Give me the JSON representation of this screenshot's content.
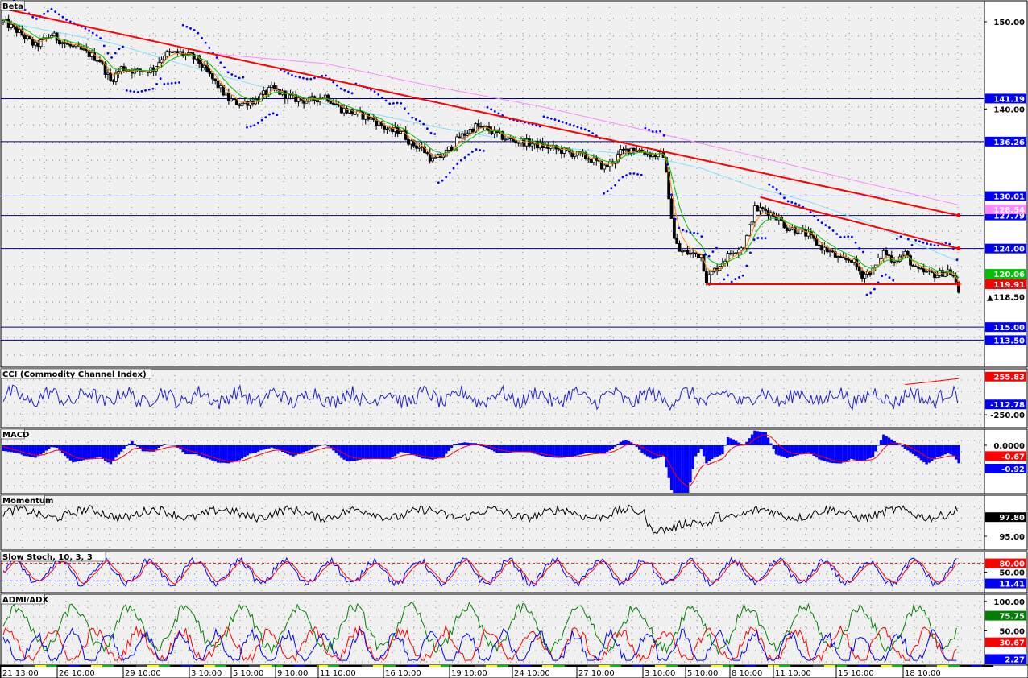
{
  "colors": {
    "background": "#f0f0f0",
    "frame": "#000000",
    "hline": "#00008b",
    "trend": "#ff0000",
    "sar": "#0000ff",
    "ma_fast": "#ff8c00",
    "ma_green": "#00c000",
    "ma_cyan": "#80e0ff",
    "ma_pink": "#ff88ff",
    "macd_hist": "#0000ff",
    "macd_signal": "#ff0000",
    "stoch_k": "#0000ff",
    "stoch_d": "#ff0000",
    "adx": "#008000",
    "di_plus": "#ff0000",
    "di_minus": "#0000ff"
  },
  "chart_data": [
    {
      "type": "candlestick",
      "title": "Beta",
      "ylim": [
        110.4,
        152.4
      ],
      "y_ticks": [
        "150.00",
        "140.00"
      ],
      "horizontal_levels": [
        {
          "value": 141.19,
          "label": "141.19",
          "bg": "#0000ff",
          "fg": "#ffffff"
        },
        {
          "value": 136.26,
          "label": "136.26",
          "bg": "#0000ff",
          "fg": "#ffffff"
        },
        {
          "value": 130.01,
          "label": "130.01",
          "bg": "#0000ff",
          "fg": "#ffffff"
        },
        {
          "value": 127.79,
          "label": "127.79",
          "bg": "#0000ff",
          "fg": "#ffffff"
        },
        {
          "value": 124.0,
          "label": "124.00",
          "bg": "#0000ff",
          "fg": "#ffffff"
        },
        {
          "value": 115.0,
          "label": "115.00",
          "bg": "#0000ff",
          "fg": "#ffffff"
        },
        {
          "value": 113.5,
          "label": "113.50",
          "bg": "#0000ff",
          "fg": "#ffffff"
        }
      ],
      "value_tags": [
        {
          "value": 128.5,
          "label": "128.54",
          "bg": "#ff88ff",
          "fg": "#ffffff"
        },
        {
          "value": 121.1,
          "label": "120.06",
          "bg": "#00c000",
          "fg": "#ffffff"
        },
        {
          "value": 119.91,
          "label": "119.91",
          "bg": "#ff0000",
          "fg": "#ffffff"
        },
        {
          "value": 118.5,
          "label": "118.50",
          "bg": "#ffffff",
          "fg": "#000000",
          "marker": "▲"
        }
      ],
      "x_labels": [
        "21 13:00",
        "26 10:00",
        "29 10:00",
        "3 10:00",
        "5 10:00",
        "9 10:00",
        "11 10:00",
        "16 10:00",
        "19 10:00",
        "24 10:00",
        "27 10:00",
        "3 10:00",
        "5 10:00",
        "8 10:00",
        "11 10:00",
        "15 10:00",
        "18 10:00"
      ],
      "close_path": [
        [
          0,
          150
        ],
        [
          3,
          148.8
        ],
        [
          6,
          147.2
        ],
        [
          9,
          148.5
        ],
        [
          12,
          147.3
        ],
        [
          15,
          146.6
        ],
        [
          18,
          145.6
        ],
        [
          20,
          143.2
        ],
        [
          22,
          144.7
        ],
        [
          25,
          144.3
        ],
        [
          28,
          144.6
        ],
        [
          30,
          146.3
        ],
        [
          33,
          146.4
        ],
        [
          36,
          145.7
        ],
        [
          39,
          143.4
        ],
        [
          42,
          141.1
        ],
        [
          44,
          140.6
        ],
        [
          47,
          141.0
        ],
        [
          50,
          142.3
        ],
        [
          54,
          141.2
        ],
        [
          57,
          140.9
        ],
        [
          60,
          141.5
        ],
        [
          63,
          140.0
        ],
        [
          66,
          139.4
        ],
        [
          69,
          138.8
        ],
        [
          72,
          137.4
        ],
        [
          74,
          137.6
        ],
        [
          76,
          136.0
        ],
        [
          78,
          135.5
        ],
        [
          80,
          134.1
        ],
        [
          82,
          134.7
        ],
        [
          85,
          136.7
        ],
        [
          88,
          138.0
        ],
        [
          90,
          137.7
        ],
        [
          92,
          137.1
        ],
        [
          94,
          136.5
        ],
        [
          97,
          136.2
        ],
        [
          100,
          135.8
        ],
        [
          103,
          135.4
        ],
        [
          106,
          134.9
        ],
        [
          109,
          134.4
        ],
        [
          112,
          133.3
        ],
        [
          114,
          134.2
        ],
        [
          115,
          135.0
        ],
        [
          117,
          135.5
        ],
        [
          119,
          135.2
        ],
        [
          121,
          134.7
        ],
        [
          123,
          134.8
        ],
        [
          124,
          130.1
        ],
        [
          125,
          125.1
        ],
        [
          126,
          123.7
        ],
        [
          128,
          123.4
        ],
        [
          130,
          123.3
        ],
        [
          131,
          120.4
        ],
        [
          132,
          121.2
        ],
        [
          134,
          122.5
        ],
        [
          136,
          123.8
        ],
        [
          138,
          124.3
        ],
        [
          140,
          128.5
        ],
        [
          142,
          128.4
        ],
        [
          144,
          127.7
        ],
        [
          146,
          126.4
        ],
        [
          148,
          126.1
        ],
        [
          150,
          125.5
        ],
        [
          152,
          124.3
        ],
        [
          154,
          123.6
        ],
        [
          156,
          122.6
        ],
        [
          158,
          122.8
        ],
        [
          160,
          121.0
        ],
        [
          162,
          121.5
        ],
        [
          164,
          123.6
        ],
        [
          166,
          122.6
        ],
        [
          168,
          123.4
        ],
        [
          170,
          121.5
        ],
        [
          172,
          121.2
        ],
        [
          174,
          121.0
        ],
        [
          176,
          121.5
        ],
        [
          177,
          120.8
        ],
        [
          178,
          119.0
        ]
      ],
      "trendlines": [
        {
          "from": [
            0,
            151.5
          ],
          "to": [
            178,
            127.8
          ]
        },
        {
          "from": [
            141,
            129.9
          ],
          "to": [
            178,
            124.0
          ]
        },
        {
          "from": [
            131,
            119.91
          ],
          "to": [
            178,
            119.91
          ]
        }
      ],
      "moving_averages": [
        {
          "name": "ma_pink",
          "color": "#ff88ff",
          "points": [
            [
              36,
              146.5
            ],
            [
              60,
              145.2
            ],
            [
              80,
              142.6
            ],
            [
              100,
              140.3
            ],
            [
              120,
              137.5
            ],
            [
              140,
              134.6
            ],
            [
              160,
              131.6
            ],
            [
              178,
              129.0
            ]
          ]
        },
        {
          "name": "ma_cyan",
          "color": "#80e0ff",
          "points": [
            [
              0,
              150
            ],
            [
              20,
              147.6
            ],
            [
              40,
              143.9
            ],
            [
              60,
              140.6
            ],
            [
              80,
              138.0
            ],
            [
              100,
              135.8
            ],
            [
              120,
              134.6
            ],
            [
              130,
              133.2
            ],
            [
              140,
              131.0
            ],
            [
              150,
              129.4
            ],
            [
              160,
              127.2
            ],
            [
              170,
              124.6
            ],
            [
              178,
              122.5
            ]
          ]
        }
      ]
    },
    {
      "type": "line",
      "title": "CCI (Commodity Channel Index)",
      "ylim": [
        -420,
        360
      ],
      "y_ticks": [
        "-250.00"
      ],
      "value_tags": [
        {
          "value": 255.83,
          "label": "255.83",
          "bg": "#ff0000",
          "fg": "#ffffff"
        },
        {
          "value": -112.78,
          "label": "-112.78",
          "bg": "#0000ff",
          "fg": "#ffffff"
        }
      ]
    },
    {
      "type": "histogram",
      "title": "MACD",
      "ylim": [
        -3.0,
        1.0
      ],
      "y_ticks": [
        "0.0000"
      ],
      "value_tags": [
        {
          "value": -0.67,
          "label": "-0.67",
          "bg": "#ff0000",
          "fg": "#ffffff"
        },
        {
          "value": -1.45,
          "label": "-0.92",
          "bg": "#0000ff",
          "fg": "#ffffff"
        }
      ]
    },
    {
      "type": "line",
      "title": "Momentum",
      "ylim": [
        93.0,
        101.0
      ],
      "y_ticks": [
        "95.00"
      ],
      "value_tags": [
        {
          "value": 97.8,
          "label": "97.80",
          "bg": "#000000",
          "fg": "#ffffff"
        }
      ]
    },
    {
      "type": "line",
      "title": "Slow Stoch, 10, 3, 3",
      "ylim": [
        -20,
        120
      ],
      "y_ticks": [
        "50.00"
      ],
      "levels": [
        80,
        20
      ],
      "value_tags": [
        {
          "value": 80,
          "label": "80.00",
          "bg": "#ff0000",
          "fg": "#ffffff"
        },
        {
          "value": 11.41,
          "label": "11.41",
          "bg": "#0000ff",
          "fg": "#ffffff"
        }
      ]
    },
    {
      "type": "line",
      "title": "ADMI/ADX",
      "ylim": [
        -8,
        112
      ],
      "y_ticks": [
        "100.00",
        "50.00"
      ],
      "value_tags": [
        {
          "value": 75.75,
          "label": "75.75",
          "bg": "#008000",
          "fg": "#ffffff"
        },
        {
          "value": 30.67,
          "label": "30.67",
          "bg": "#ff0000",
          "fg": "#ffffff"
        },
        {
          "value": 2.27,
          "label": "2.27",
          "bg": "#0000ff",
          "fg": "#ffffff"
        }
      ]
    }
  ]
}
